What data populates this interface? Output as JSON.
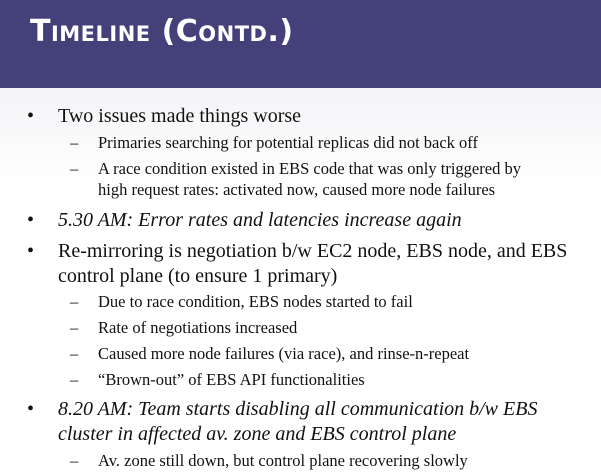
{
  "title": "Timeline (Contd.)",
  "bullets": {
    "b1": {
      "text": "Two issues made things worse",
      "subs": [
        "Primaries searching for potential replicas did not back off",
        "A race condition existed in EBS code that was only triggered by",
        "high request rates: activated now, caused more node failures"
      ]
    },
    "b2": {
      "text": "5.30 AM: Error rates and latencies increase again"
    },
    "b3": {
      "line1": "Re-mirroring is negotiation b/w EC2 node, EBS node, and EBS",
      "line2": "control plane (to ensure 1 primary)",
      "subs": [
        "Due to race condition, EBS nodes started to fail",
        "Rate of negotiations increased",
        "Caused more node failures (via race), and rinse-n-repeat",
        "“Brown-out” of EBS API functionalities"
      ]
    },
    "b4": {
      "line1": "8.20 AM: Team starts disabling all communication b/w EBS",
      "line2": "cluster in affected av. zone and EBS control plane",
      "subs": [
        "Av. zone still down, but control plane recovering slowly"
      ]
    }
  },
  "markers": {
    "bullet": "•",
    "dash": "–"
  }
}
